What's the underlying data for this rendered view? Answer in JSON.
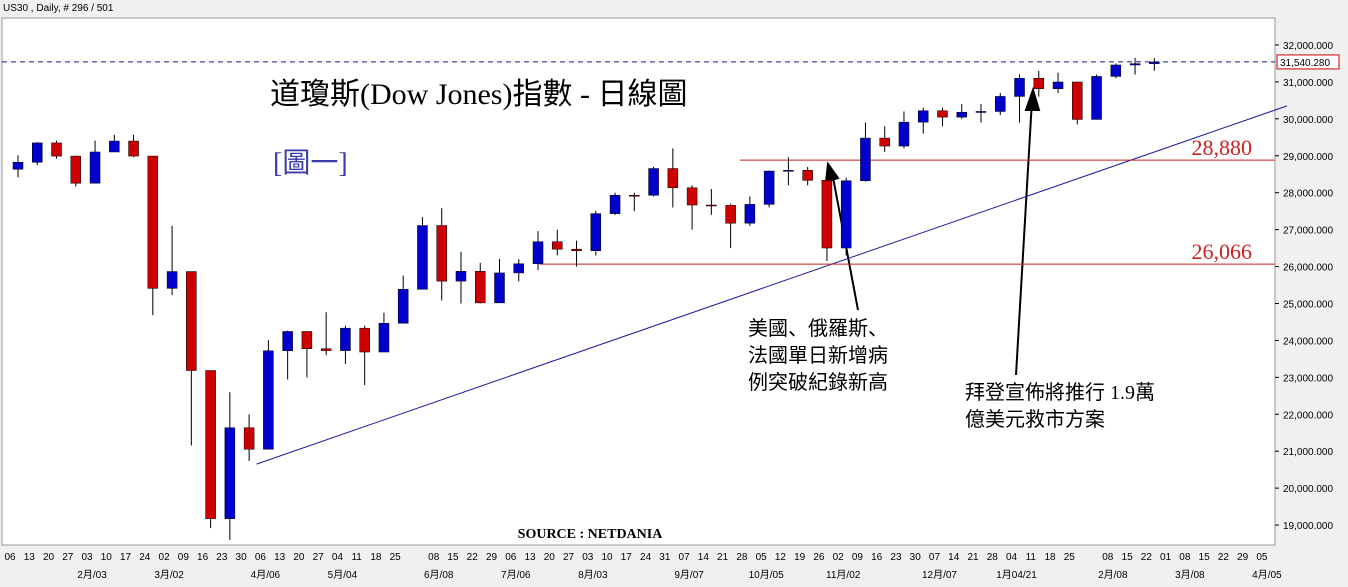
{
  "chart_data": {
    "type": "candlestick",
    "header": "US30 , Daily, # 296 / 501",
    "title": "道瓊斯(Dow Jones)指數 -  日線圖",
    "subtitle": "[圖一]",
    "source": "SOURCE : NETDANIA",
    "categories": [
      "06",
      "13",
      "20",
      "27",
      "03",
      "10",
      "17",
      "24",
      "02",
      "09",
      "16",
      "23",
      "30",
      "06",
      "13",
      "20",
      "27",
      "04",
      "11",
      "18",
      "25",
      null,
      "08",
      "15",
      "22",
      "29",
      "06",
      "13",
      "20",
      "27",
      "03",
      "10",
      "17",
      "24",
      "31",
      "07",
      "14",
      "21",
      "28",
      "05",
      "12",
      "19",
      "26",
      "02",
      "09",
      "16",
      "23",
      "30",
      "07",
      "14",
      "21",
      "28",
      "04",
      "11",
      "18",
      "25",
      null,
      "08",
      "15",
      "22",
      "01",
      "08",
      "15",
      "22",
      "29",
      "05"
    ],
    "month_labels": [
      null,
      null,
      null,
      null,
      "2月/03",
      null,
      null,
      null,
      "3月/02",
      null,
      null,
      null,
      null,
      "4月/06",
      null,
      null,
      null,
      "5月/04",
      null,
      null,
      null,
      null,
      "6月/08",
      null,
      null,
      null,
      "7月/06",
      null,
      null,
      null,
      "8月/03",
      null,
      null,
      null,
      null,
      "9月/07",
      null,
      null,
      null,
      "10月/05",
      null,
      null,
      null,
      "11月/02",
      null,
      null,
      null,
      null,
      "12月/07",
      null,
      null,
      null,
      "1月04/21",
      null,
      null,
      null,
      null,
      "2月/08",
      null,
      null,
      null,
      "3月/08",
      null,
      null,
      null,
      "4月/05"
    ],
    "open": [
      28634,
      28823,
      29348,
      28990,
      28256,
      29102,
      29398,
      28992,
      25409,
      25865,
      23185,
      19174,
      21636,
      21053,
      23719,
      24242,
      23775,
      23724,
      24331,
      23685,
      24465,
      25383,
      27111,
      25605,
      25871,
      25016,
      25827,
      26075,
      26672,
      26470,
      26428,
      27433,
      27931,
      27930,
      28654,
      28133,
      27666,
      27657,
      27174,
      27683,
      28586,
      28606,
      28335,
      26502,
      28323,
      29479,
      29263,
      29910,
      30218,
      30046,
      30179,
      30199,
      30606,
      31098,
      30814,
      30997,
      29983,
      31148,
      31458,
      31494,
      null,
      null,
      null,
      null,
      null,
      null
    ],
    "high": [
      29009,
      29373,
      29409,
      29000,
      29409,
      29568,
      29568,
      28992,
      27102,
      25865,
      23185,
      22595,
      22000,
      24008,
      24264,
      24242,
      24764,
      24400,
      24400,
      24750,
      25758,
      27338,
      27580,
      26400,
      26100,
      26204,
      26200,
      26960,
      27000,
      26700,
      27500,
      28000,
      28000,
      28700,
      29200,
      28200,
      28100,
      27700,
      27900,
      28600,
      28960,
      28700,
      28300,
      28400,
      29900,
      29800,
      30200,
      30300,
      30300,
      30400,
      30400,
      30700,
      31200,
      31300,
      31250,
      31000,
      31200,
      31500,
      31650,
      31650,
      null,
      null,
      null,
      null,
      null,
      null
    ],
    "low": [
      28418,
      28747,
      28922,
      28169,
      28256,
      29102,
      28960,
      24681,
      25226,
      21154,
      18917,
      18600,
      20735,
      21053,
      22941,
      23000,
      23600,
      23361,
      22790,
      23685,
      24465,
      25383,
      25082,
      25000,
      25000,
      25016,
      25600,
      25900,
      26300,
      26000,
      26300,
      27400,
      27500,
      27900,
      27600,
      27000,
      27400,
      26500,
      27100,
      27600,
      28200,
      28200,
      26150,
      26300,
      28300,
      29100,
      29200,
      29600,
      29800,
      30000,
      29900,
      30100,
      29900,
      30600,
      30700,
      29850,
      29983,
      31100,
      31200,
      31300,
      null,
      null,
      null,
      null,
      null,
      null
    ],
    "close": [
      28824,
      29348,
      28990,
      28256,
      29102,
      29398,
      28992,
      25409,
      25865,
      23185,
      19174,
      21636,
      21053,
      23719,
      24242,
      23775,
      23724,
      24331,
      23685,
      24465,
      25383,
      27111,
      25605,
      25871,
      25016,
      25827,
      26075,
      26672,
      26470,
      26428,
      27433,
      27931,
      27930,
      28654,
      28133,
      27666,
      27657,
      27174,
      27683,
      28586,
      28606,
      28335,
      26502,
      28323,
      29479,
      29263,
      29910,
      30218,
      30046,
      30179,
      30199,
      30606,
      31098,
      30814,
      30997,
      29983,
      31148,
      31458,
      31494,
      31540.28,
      null,
      null,
      null,
      null,
      null,
      null
    ],
    "up_color": "#0000cc",
    "down_color": "#cc0000",
    "ylim": [
      18460,
      32730
    ],
    "yticks": [
      {
        "value": 19000,
        "label": "19,000.000"
      },
      {
        "value": 20000,
        "label": "20,000.000"
      },
      {
        "value": 21000,
        "label": "21,000.000"
      },
      {
        "value": 22000,
        "label": "22,000.000"
      },
      {
        "value": 23000,
        "label": "23,000.000"
      },
      {
        "value": 24000,
        "label": "24,000.000"
      },
      {
        "value": 25000,
        "label": "25,000.000"
      },
      {
        "value": 26000,
        "label": "26,000.000"
      },
      {
        "value": 27000,
        "label": "27,000.000"
      },
      {
        "value": 28000,
        "label": "28,000.000"
      },
      {
        "value": 29000,
        "label": "29,000.000"
      },
      {
        "value": 30000,
        "label": "30,000.000"
      },
      {
        "value": 31000,
        "label": "31,000.000"
      },
      {
        "value": 32000,
        "label": "32,000.000"
      }
    ],
    "price_line": {
      "value": 31540.28,
      "label": "31,540.280"
    },
    "levels": [
      {
        "value": 28880,
        "label": "28,880",
        "start": 37.9
      },
      {
        "value": 26066,
        "label": "26,066",
        "start": 27.5
      }
    ],
    "trendline": {
      "x": [
        12.8,
        66.3
      ],
      "y": [
        20650,
        30350
      ]
    },
    "annotations": [
      {
        "lines": [
          "美國、俄羅斯、",
          "法國單日新增病",
          "例突破紀錄新高"
        ]
      },
      {
        "lines": [
          "拜登宣佈將推行 1.9萬",
          "億美元救市方案"
        ]
      }
    ]
  }
}
